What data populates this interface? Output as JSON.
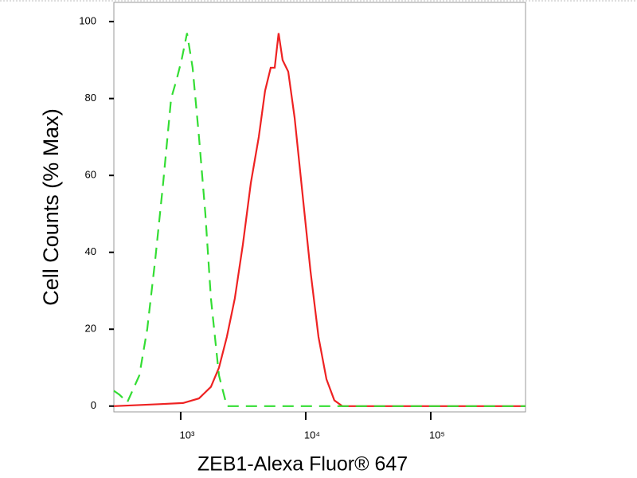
{
  "chart_data": {
    "type": "line",
    "x_label": "ZEB1-Alexa Fluor® 647",
    "y_label": "Cell Counts (% Max)",
    "x_scale": "log",
    "xlim": [
      292,
      573000
    ],
    "ylim": [
      -1.5,
      105
    ],
    "xticks": [
      {
        "value": 1000,
        "label": "10³"
      },
      {
        "value": 10000,
        "label": "10⁴"
      },
      {
        "value": 100000,
        "label": "10⁵"
      }
    ],
    "yticks": [
      0,
      20,
      40,
      60,
      80,
      100
    ],
    "series": [
      {
        "color": "#ee2222",
        "dash": false,
        "x": [
          292,
          673,
          1045,
          1401,
          1746,
          2022,
          2340,
          2711,
          3140,
          3636,
          4210,
          4733,
          5248,
          5646,
          6070,
          6531,
          7244,
          8147,
          9431,
          10920,
          12650,
          14650,
          16950,
          19630,
          573000
        ],
        "values": [
          0,
          0.5,
          0.8,
          2,
          5,
          10,
          18,
          28,
          42,
          58,
          70,
          82,
          88,
          88,
          97,
          90,
          87,
          75,
          55,
          35,
          18,
          7,
          1.5,
          0,
          0
        ]
      },
      {
        "color": "#33dd33",
        "dash": true,
        "x": [
          292,
          323,
          374,
          467,
          540,
          625,
          724,
          838,
          929,
          1015,
          1124,
          1246,
          1401,
          1575,
          1746,
          2022,
          2340,
          573000
        ],
        "values": [
          4,
          3,
          1,
          8,
          20,
          38,
          58,
          80,
          85,
          90,
          97,
          88,
          70,
          50,
          28,
          8,
          0,
          0
        ]
      }
    ]
  }
}
